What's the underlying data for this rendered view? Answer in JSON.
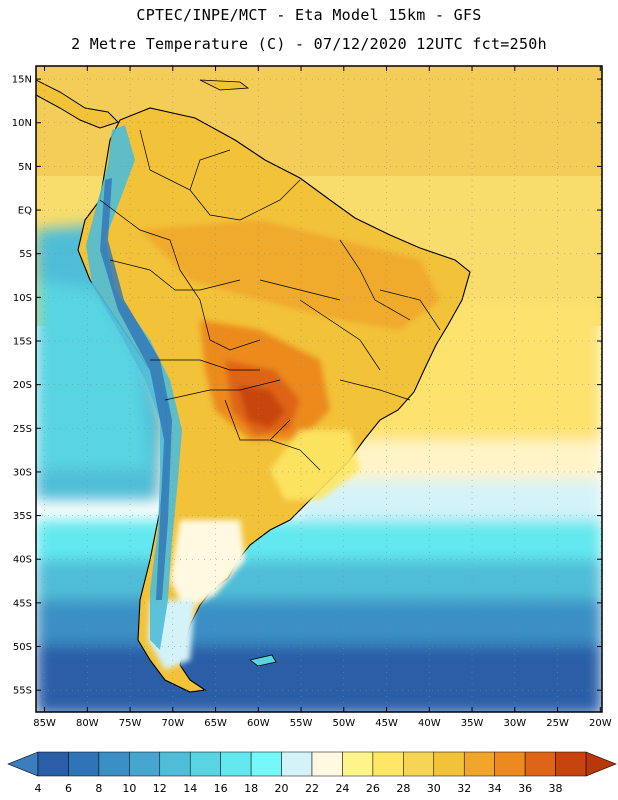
{
  "header": {
    "line1": "CPTEC/INPE/MCT -  Eta Model 15km - GFS",
    "line2": "2 Metre Temperature (C) - 07/12/2020 12UTC fct=250h"
  },
  "map": {
    "lat_labels": [
      "15N",
      "10N",
      "5N",
      "EQ",
      "5S",
      "10S",
      "15S",
      "20S",
      "25S",
      "30S",
      "35S",
      "40S",
      "45S",
      "50S",
      "55S"
    ],
    "lon_labels": [
      "85W",
      "80W",
      "75W",
      "70W",
      "65W",
      "60W",
      "55W",
      "50W",
      "45W",
      "40W",
      "35W",
      "30W",
      "25W",
      "20W"
    ],
    "lat_range": [
      16.5,
      -57.5
    ],
    "lon_range": [
      -86,
      -19.8
    ]
  },
  "legend": {
    "labels": [
      "4",
      "6",
      "8",
      "10",
      "12",
      "14",
      "16",
      "18",
      "20",
      "22",
      "24",
      "26",
      "28",
      "30",
      "32",
      "34",
      "36",
      "38"
    ],
    "colors": [
      "#2a5ea8",
      "#2f74b6",
      "#3a8fc4",
      "#47a6cf",
      "#4fbdd8",
      "#58d4e2",
      "#62e8ee",
      "#75f8f8",
      "#d4f3f9",
      "#fff9e1",
      "#fdf58a",
      "#fde764",
      "#f7d554",
      "#f2c239",
      "#f0a62b",
      "#ec8a1f",
      "#de6417",
      "#c8440f"
    ],
    "under_color": "#3a7ec0",
    "over_color": "#b8380c"
  }
}
